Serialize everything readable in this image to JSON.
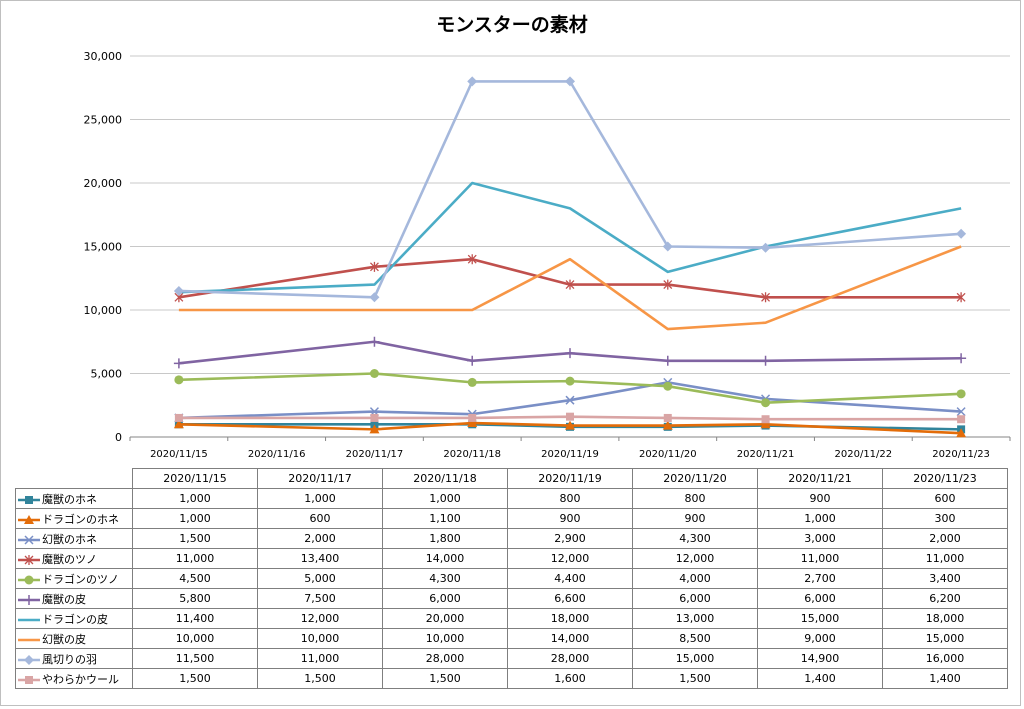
{
  "chart_data": {
    "type": "line",
    "title": "モンスターの素材",
    "x_axis": {
      "type": "date",
      "ticks": [
        "2020/11/15",
        "2020/11/16",
        "2020/11/17",
        "2020/11/18",
        "2020/11/19",
        "2020/11/20",
        "2020/11/21",
        "2020/11/22",
        "2020/11/23"
      ]
    },
    "x": [
      "2020/11/15",
      "2020/11/17",
      "2020/11/18",
      "2020/11/19",
      "2020/11/20",
      "2020/11/21",
      "2020/11/23"
    ],
    "ylim": [
      0,
      30000
    ],
    "y_ticks": [
      "0",
      "5,000",
      "10,000",
      "15,000",
      "20,000",
      "25,000",
      "30,000"
    ],
    "grid": true,
    "legend": "data-table",
    "series": [
      {
        "name": "魔獣のホネ",
        "color": "#31849b",
        "marker": "square",
        "values": [
          1000,
          1000,
          1000,
          800,
          800,
          900,
          600
        ],
        "labels": [
          "1,000",
          "1,000",
          "1,000",
          "800",
          "800",
          "900",
          "600"
        ]
      },
      {
        "name": "ドラゴンのホネ",
        "color": "#e36c09",
        "marker": "triangle",
        "values": [
          1000,
          600,
          1100,
          900,
          900,
          1000,
          300
        ],
        "labels": [
          "1,000",
          "600",
          "1,100",
          "900",
          "900",
          "1,000",
          "300"
        ]
      },
      {
        "name": "幻獣のホネ",
        "color": "#7a8fc6",
        "marker": "x",
        "values": [
          1500,
          2000,
          1800,
          2900,
          4300,
          3000,
          2000
        ],
        "labels": [
          "1,500",
          "2,000",
          "1,800",
          "2,900",
          "4,300",
          "3,000",
          "2,000"
        ]
      },
      {
        "name": "魔獣のツノ",
        "color": "#c0504d",
        "marker": "star",
        "values": [
          11000,
          13400,
          14000,
          12000,
          12000,
          11000,
          11000
        ],
        "labels": [
          "11,000",
          "13,400",
          "14,000",
          "12,000",
          "12,000",
          "11,000",
          "11,000"
        ]
      },
      {
        "name": "ドラゴンのツノ",
        "color": "#9bbb59",
        "marker": "circle",
        "values": [
          4500,
          5000,
          4300,
          4400,
          4000,
          2700,
          3400
        ],
        "labels": [
          "4,500",
          "5,000",
          "4,300",
          "4,400",
          "4,000",
          "2,700",
          "3,400"
        ]
      },
      {
        "name": "魔獣の皮",
        "color": "#8064a2",
        "marker": "plus",
        "values": [
          5800,
          7500,
          6000,
          6600,
          6000,
          6000,
          6200
        ],
        "labels": [
          "5,800",
          "7,500",
          "6,000",
          "6,600",
          "6,000",
          "6,000",
          "6,200"
        ]
      },
      {
        "name": "ドラゴンの皮",
        "color": "#4bacc6",
        "marker": "none",
        "values": [
          11400,
          12000,
          20000,
          18000,
          13000,
          15000,
          18000
        ],
        "labels": [
          "11,400",
          "12,000",
          "20,000",
          "18,000",
          "13,000",
          "15,000",
          "18,000"
        ]
      },
      {
        "name": "幻獣の皮",
        "color": "#f79646",
        "marker": "none",
        "values": [
          10000,
          10000,
          10000,
          14000,
          8500,
          9000,
          15000
        ],
        "labels": [
          "10,000",
          "10,000",
          "10,000",
          "14,000",
          "8,500",
          "9,000",
          "15,000"
        ]
      },
      {
        "name": "風切りの羽",
        "color": "#a5b8dc",
        "marker": "diamond",
        "values": [
          11500,
          11000,
          28000,
          28000,
          15000,
          14900,
          16000
        ],
        "labels": [
          "11,500",
          "11,000",
          "28,000",
          "28,000",
          "15,000",
          "14,900",
          "16,000"
        ]
      },
      {
        "name": "やわらかウール",
        "color": "#d9a5a5",
        "marker": "square",
        "values": [
          1500,
          1500,
          1500,
          1600,
          1500,
          1400,
          1400
        ],
        "labels": [
          "1,500",
          "1,500",
          "1,500",
          "1,600",
          "1,500",
          "1,400",
          "1,400"
        ]
      }
    ]
  }
}
